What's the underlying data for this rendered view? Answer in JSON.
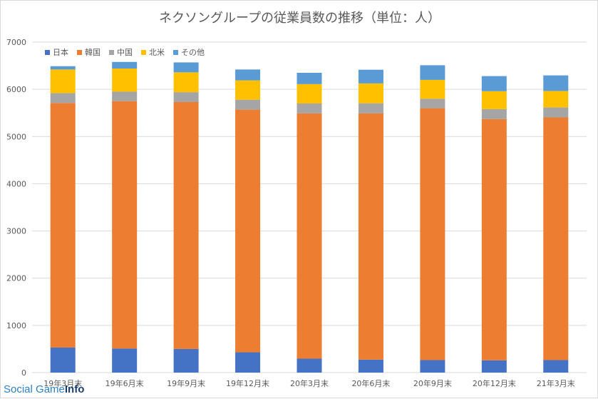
{
  "chart_data": {
    "type": "bar",
    "stacked": true,
    "title": "ネクソングループの従業員数の推移（単位：人）",
    "categories": [
      "19年3月末",
      "19年6月末",
      "19年9月末",
      "19年12月末",
      "20年3月末",
      "20年6月末",
      "20年9月末",
      "20年12月末",
      "21年3月末"
    ],
    "ylim": [
      0,
      7000
    ],
    "yticks": [
      0,
      1000,
      2000,
      3000,
      4000,
      5000,
      6000,
      7000
    ],
    "grid": true,
    "legend_position": "top-left",
    "series": [
      {
        "name": "日本",
        "color": "#4472c4",
        "values": [
          530,
          510,
          500,
          430,
          295,
          275,
          265,
          260,
          265
        ]
      },
      {
        "name": "韓国",
        "color": "#ed7d31",
        "values": [
          5180,
          5240,
          5230,
          5140,
          5195,
          5215,
          5335,
          5110,
          5140
        ]
      },
      {
        "name": "中国",
        "color": "#a5a5a5",
        "values": [
          210,
          200,
          210,
          210,
          210,
          215,
          200,
          210,
          210
        ]
      },
      {
        "name": "北米",
        "color": "#ffc000",
        "values": [
          500,
          490,
          420,
          410,
          410,
          420,
          400,
          380,
          350
        ]
      },
      {
        "name": "その他",
        "color": "#5b9bd5",
        "values": [
          70,
          140,
          210,
          230,
          240,
          290,
          310,
          320,
          330
        ]
      }
    ]
  },
  "watermark": {
    "part1": "Social Game",
    "part2": "Info"
  }
}
